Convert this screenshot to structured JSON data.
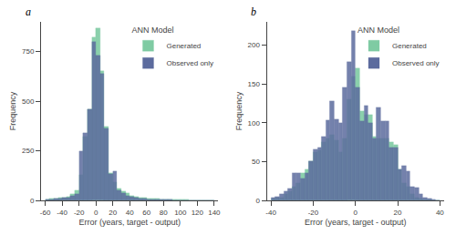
{
  "chart_data": [
    {
      "type": "histogram",
      "title": "a",
      "xlabel": "Error (years, target - output)",
      "ylabel": "Frequency",
      "xlim": [
        -65,
        145
      ],
      "ylim": [
        0,
        900
      ],
      "xticks": [
        -60,
        -40,
        -20,
        0,
        20,
        40,
        60,
        80,
        100,
        120,
        140
      ],
      "yticks": [
        0,
        250,
        500,
        750
      ],
      "bins": [
        -60,
        -55,
        -50,
        -45,
        -40,
        -35,
        -30,
        -25,
        -20,
        -15,
        -10,
        -5,
        0,
        5,
        10,
        15,
        20,
        25,
        30,
        35,
        40,
        45,
        50,
        55,
        60,
        65,
        70,
        75,
        80,
        85,
        90,
        95,
        100,
        105,
        110,
        115,
        120,
        125,
        130,
        135,
        140
      ],
      "series": [
        {
          "name": "Generated",
          "color": "#7fcba3",
          "values": [
            5,
            8,
            10,
            12,
            15,
            20,
            30,
            50,
            130,
            320,
            460,
            820,
            870,
            650,
            370,
            140,
            90,
            60,
            45,
            35,
            25,
            20,
            15,
            12,
            10,
            8,
            7,
            6,
            5,
            5,
            4,
            4,
            3,
            3,
            2,
            2,
            1,
            1,
            1,
            0
          ]
        },
        {
          "name": "Observed only",
          "color": "#5c6b9e",
          "values": [
            3,
            5,
            7,
            9,
            12,
            16,
            22,
            30,
            250,
            340,
            460,
            800,
            730,
            640,
            365,
            135,
            145,
            50,
            35,
            25,
            18,
            12,
            8,
            7,
            6,
            5,
            4,
            3,
            3,
            3,
            2,
            2,
            2,
            2,
            1,
            1,
            1,
            1,
            1,
            0
          ]
        }
      ],
      "legend": "upper right",
      "legend_title": "ANN Model",
      "grid": false
    },
    {
      "type": "histogram",
      "title": "b",
      "xlabel": "Error (years, target - output)",
      "ylabel": "Frequency",
      "xlim": [
        -42,
        42
      ],
      "ylim": [
        0,
        230
      ],
      "xticks": [
        -40,
        -20,
        0,
        20,
        40
      ],
      "yticks": [
        0,
        50,
        100,
        150,
        200
      ],
      "bins": [
        -40,
        -38,
        -36,
        -34,
        -32,
        -30,
        -28,
        -26,
        -24,
        -22,
        -20,
        -18,
        -16,
        -14,
        -12,
        -10,
        -8,
        -6,
        -4,
        -2,
        0,
        2,
        4,
        6,
        8,
        10,
        12,
        14,
        16,
        18,
        20,
        22,
        24,
        26,
        28,
        30,
        32,
        34,
        36,
        38,
        40
      ],
      "series": [
        {
          "name": "Generated",
          "color": "#7fcba3",
          "values": [
            2,
            3,
            4,
            8,
            12,
            18,
            22,
            35,
            40,
            50,
            62,
            65,
            75,
            80,
            85,
            78,
            62,
            80,
            130,
            160,
            170,
            115,
            110,
            110,
            82,
            80,
            80,
            80,
            75,
            72,
            40,
            22,
            18,
            8,
            4,
            2,
            1,
            1,
            0,
            0
          ]
        },
        {
          "name": "Observed only",
          "color": "#5c6b9e",
          "values": [
            3,
            5,
            8,
            12,
            15,
            35,
            35,
            28,
            35,
            50,
            66,
            68,
            82,
            103,
            128,
            105,
            100,
            145,
            178,
            218,
            145,
            102,
            122,
            100,
            80,
            120,
            102,
            102,
            68,
            68,
            40,
            45,
            38,
            18,
            17,
            8,
            4,
            2,
            1,
            0
          ]
        }
      ],
      "legend": "upper right",
      "legend_title": "ANN Model",
      "grid": false
    }
  ]
}
